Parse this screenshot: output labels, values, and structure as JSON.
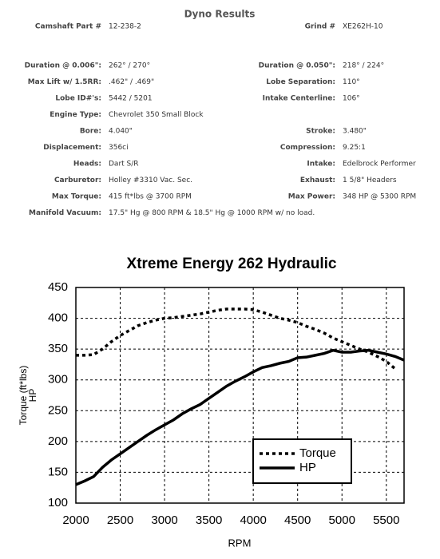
{
  "header": {
    "title": "Dyno Results"
  },
  "specs": [
    {
      "left": [
        "Camshaft Part #",
        "12-238-2"
      ],
      "right": [
        "Grind #",
        "XE262H-10"
      ]
    },
    {
      "left": [
        "Duration @ 0.006\":",
        "262° / 270°"
      ],
      "right": [
        "Duration @ 0.050\":",
        "218° / 224°"
      ]
    },
    {
      "left": [
        "Max Lift w/ 1.5RR:",
        ".462\" / .469\""
      ],
      "right": [
        "Lobe Separation:",
        "110°"
      ]
    },
    {
      "left": [
        "Lobe ID#'s:",
        "5442 / 5201"
      ],
      "right": [
        "Intake Centerline:",
        "106°"
      ]
    },
    {
      "left": [
        "Engine Type:",
        "Chevrolet 350 Small Block"
      ]
    },
    {
      "left": [
        "Bore:",
        "4.040\""
      ],
      "right": [
        "Stroke:",
        "3.480\""
      ]
    },
    {
      "left": [
        "Displacement:",
        "356ci"
      ],
      "right": [
        "Compression:",
        "9.25:1"
      ]
    },
    {
      "left": [
        "Heads:",
        "Dart S/R"
      ],
      "right": [
        "Intake:",
        "Edelbrock Performer"
      ]
    },
    {
      "left": [
        "Carburetor:",
        "Holley #3310 Vac. Sec."
      ],
      "right": [
        "Exhaust:",
        "1 5/8\" Headers"
      ]
    },
    {
      "left": [
        "Max Torque:",
        "415 ft*lbs @ 3700 RPM"
      ],
      "right": [
        "Max Power:",
        "348 HP @ 5300 RPM"
      ]
    },
    {
      "left": [
        "Manifold Vacuum:",
        "17.5\" Hg @ 800 RPM & 18.5\" Hg @ 1000 RPM w/ no load."
      ]
    }
  ],
  "highlight_color": "#8b1a1a",
  "chart_data": {
    "type": "line",
    "title": "Xtreme Energy 262 Hydraulic",
    "x_label": "RPM",
    "y_label": [
      "Torque (ft*lbs)",
      "HP"
    ],
    "x": [
      2000,
      2100,
      2200,
      2300,
      2400,
      2500,
      2600,
      2700,
      2800,
      2900,
      3000,
      3100,
      3200,
      3300,
      3400,
      3500,
      3600,
      3700,
      3800,
      3900,
      4000,
      4100,
      4200,
      4300,
      4400,
      4500,
      4600,
      4700,
      4800,
      4900,
      5000,
      5100,
      5200,
      5300,
      5400,
      5500,
      5600,
      5700
    ],
    "series": [
      {
        "name": "Torque",
        "color": "#000000",
        "style": "dotted",
        "values": [
          340,
          340,
          341,
          350,
          362,
          372,
          380,
          388,
          393,
          397,
          400,
          401,
          403,
          405,
          407,
          410,
          413,
          415,
          415,
          415,
          414,
          410,
          405,
          400,
          397,
          393,
          387,
          382,
          376,
          368,
          362,
          356,
          350,
          345,
          338,
          330,
          318,
          null
        ]
      },
      {
        "name": "HP",
        "color": "#000000",
        "style": "solid",
        "values": [
          130,
          136,
          143,
          158,
          170,
          180,
          190,
          200,
          210,
          219,
          227,
          235,
          245,
          253,
          260,
          270,
          280,
          290,
          298,
          305,
          313,
          320,
          323,
          327,
          330,
          336,
          337,
          340,
          343,
          348,
          345,
          345,
          347,
          348,
          345,
          342,
          338,
          332
        ]
      }
    ],
    "xlim": [
      2000,
      5700
    ],
    "xticks": [
      2000,
      2500,
      3000,
      3500,
      4000,
      4500,
      5000,
      5500
    ],
    "ylim": [
      100,
      450
    ],
    "yticks": [
      100,
      150,
      200,
      250,
      300,
      350,
      400,
      450
    ],
    "grid": true,
    "legend": "lower right"
  }
}
